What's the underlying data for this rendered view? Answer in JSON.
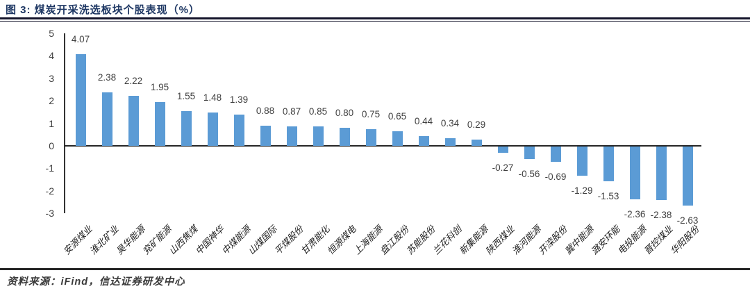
{
  "header": {
    "title": "图 3: 煤炭开采洗选板块个股表现（%）"
  },
  "footer": {
    "source": "资料来源：iFind，信达证券研发中心"
  },
  "colors": {
    "title": "#1F3864",
    "rule": "#14142a",
    "bar": "#5B9BD5",
    "axis": "#333333",
    "value_label": "#3f3f3f"
  },
  "chart_data": {
    "type": "bar",
    "title": "煤炭开采洗选板块个股表现（%）",
    "categories": [
      "安源煤业",
      "淮北矿业",
      "昊华能源",
      "兖矿能源",
      "山西焦煤",
      "中国神华",
      "中煤能源",
      "山煤国际",
      "平煤股份",
      "甘肃能化",
      "恒源煤电",
      "上海能源",
      "盘江股份",
      "苏能股份",
      "兰花科创",
      "新集能源",
      "陕西煤业",
      "淮河能源",
      "开滦股份",
      "冀中能源",
      "潞安环能",
      "电投能源",
      "晋控煤业",
      "华阳股份"
    ],
    "values": [
      4.07,
      2.38,
      2.22,
      1.95,
      1.55,
      1.48,
      1.39,
      0.88,
      0.87,
      0.85,
      0.8,
      0.75,
      0.65,
      0.44,
      0.34,
      0.29,
      -0.27,
      -0.56,
      -0.69,
      -1.29,
      -1.53,
      -2.36,
      -2.38,
      -2.63
    ],
    "data_labels": true,
    "xlabel": "",
    "ylabel": "",
    "ylim": [
      -3,
      5
    ],
    "yticks": [
      5,
      4,
      3,
      2,
      1,
      0,
      -1,
      -2,
      -3
    ],
    "grid": false,
    "legend": "none",
    "bar_color": "#5B9BD5"
  }
}
